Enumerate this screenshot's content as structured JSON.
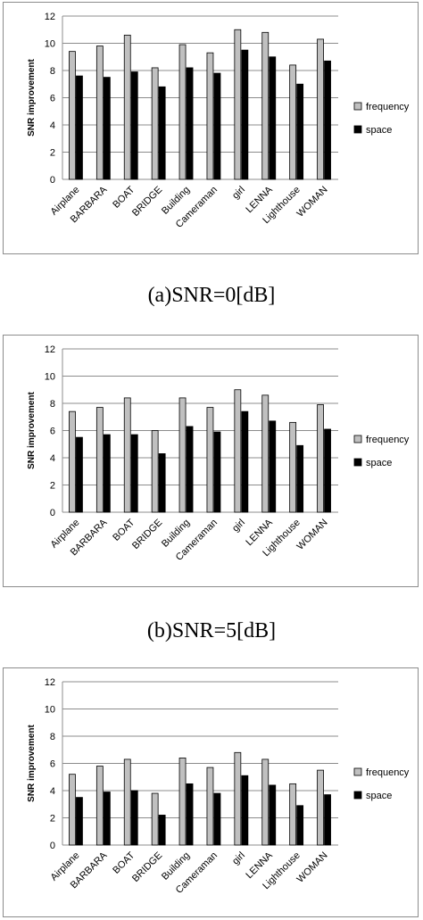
{
  "captions": [
    "(a)SNR=0[dB]",
    "(b)SNR=5[dB]"
  ],
  "chart_data": [
    {
      "type": "bar",
      "categories": [
        "Airplane",
        "BARBARA",
        "BOAT",
        "BRIDGE",
        "Building",
        "Cameraman",
        "girl",
        "LENNA",
        "Lighthouse",
        "WOMAN"
      ],
      "series": [
        {
          "name": "frequency",
          "values": [
            9.4,
            9.8,
            10.6,
            8.2,
            9.9,
            9.3,
            11.0,
            10.8,
            8.4,
            10.3
          ],
          "color": "#c0c0c0"
        },
        {
          "name": "space",
          "values": [
            7.6,
            7.5,
            7.9,
            6.8,
            8.2,
            7.8,
            9.5,
            9.0,
            7.0,
            8.7
          ],
          "color": "#000000"
        }
      ],
      "ylabel": "SNR improvement",
      "yticks": [
        0,
        2,
        4,
        6,
        8,
        10,
        12
      ],
      "ylim": [
        0,
        12
      ],
      "grid": true,
      "legend": "right"
    },
    {
      "type": "bar",
      "categories": [
        "Airplane",
        "BARBARA",
        "BOAT",
        "BRIDGE",
        "Building",
        "Cameraman",
        "girl",
        "LENNA",
        "Lighthouse",
        "WOMAN"
      ],
      "series": [
        {
          "name": "frequency",
          "values": [
            7.4,
            7.7,
            8.4,
            6.0,
            8.4,
            7.7,
            9.0,
            8.6,
            6.6,
            7.9
          ],
          "color": "#c0c0c0"
        },
        {
          "name": "space",
          "values": [
            5.5,
            5.7,
            5.7,
            4.3,
            6.3,
            5.9,
            7.4,
            6.7,
            4.9,
            6.1
          ],
          "color": "#000000"
        }
      ],
      "ylabel": "SNR improvement",
      "yticks": [
        0,
        2,
        4,
        6,
        8,
        10,
        12
      ],
      "ylim": [
        0,
        12
      ],
      "grid": true,
      "legend": "right"
    },
    {
      "type": "bar",
      "categories": [
        "Airplane",
        "BARBARA",
        "BOAT",
        "BRIDGE",
        "Building",
        "Cameraman",
        "girl",
        "LENNA",
        "Lighthouse",
        "WOMAN"
      ],
      "series": [
        {
          "name": "frequency",
          "values": [
            5.2,
            5.8,
            6.3,
            3.8,
            6.4,
            5.7,
            6.8,
            6.3,
            4.5,
            5.5
          ],
          "color": "#c0c0c0"
        },
        {
          "name": "space",
          "values": [
            3.5,
            3.9,
            4.0,
            2.2,
            4.5,
            3.8,
            5.1,
            4.4,
            2.9,
            3.7
          ],
          "color": "#000000"
        }
      ],
      "ylabel": "SNR improvement",
      "yticks": [
        0,
        2,
        4,
        6,
        8,
        10,
        12
      ],
      "ylim": [
        0,
        12
      ],
      "grid": true,
      "legend": "right"
    }
  ]
}
